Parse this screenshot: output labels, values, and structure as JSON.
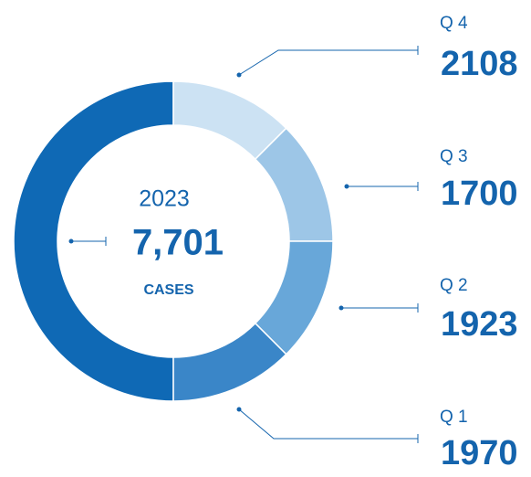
{
  "center": {
    "year": "2023",
    "total": "7,701",
    "unit": "CASES"
  },
  "quarters": [
    {
      "label": "Q 4",
      "value": "2108"
    },
    {
      "label": "Q 3",
      "value": "1700"
    },
    {
      "label": "Q 2",
      "value": "1923"
    },
    {
      "label": "Q 1",
      "value": "1970"
    }
  ]
}
